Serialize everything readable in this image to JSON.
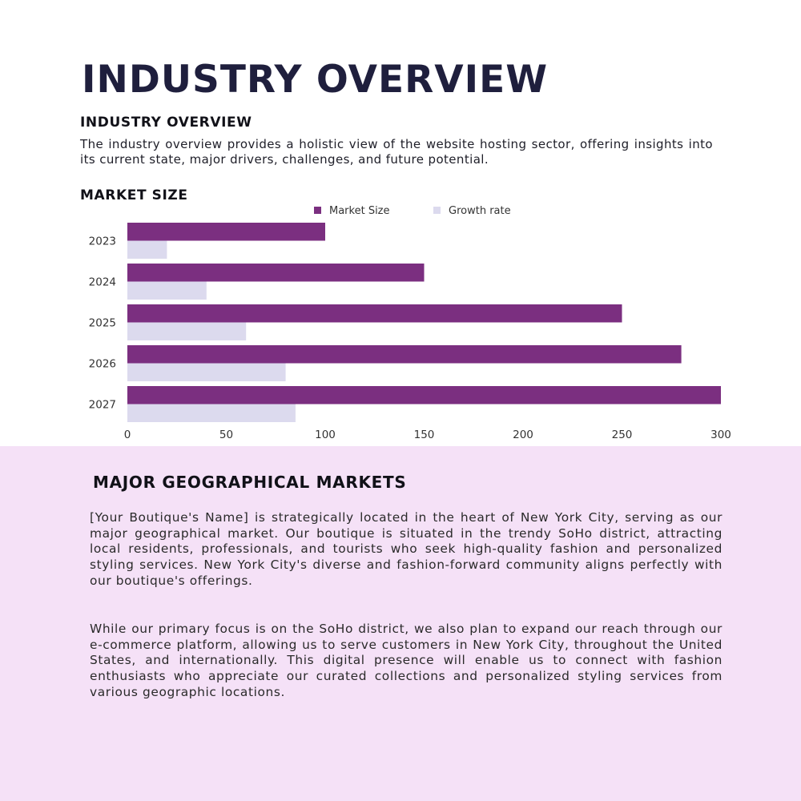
{
  "page": {
    "title": "INDUSTRY OVERVIEW"
  },
  "overview": {
    "heading": "INDUSTRY OVERVIEW",
    "text": "The industry overview provides a holistic view of the website hosting sector, offering insights into its current state, major drivers, challenges, and future potential."
  },
  "market_size": {
    "heading": "MARKET SIZE"
  },
  "chart_data": {
    "type": "bar",
    "orientation": "horizontal",
    "categories": [
      "2023",
      "2024",
      "2025",
      "2026",
      "2027"
    ],
    "series": [
      {
        "name": "Market Size",
        "values": [
          100,
          150,
          250,
          280,
          300
        ],
        "color": "#7b2f80"
      },
      {
        "name": "Growth rate",
        "values": [
          20,
          40,
          60,
          80,
          85
        ],
        "color": "#dcdaee"
      }
    ],
    "xlim": [
      0,
      300
    ],
    "xticks": [
      "0",
      "50",
      "100",
      "150",
      "200",
      "250",
      "300"
    ],
    "legend_position": "top",
    "grid": false
  },
  "geo": {
    "heading": "MAJOR GEOGRAPHICAL MARKETS",
    "paragraph1": "[Your Boutique's Name] is strategically located in the heart of New York City, serving as our major geographical market. Our boutique is situated in the trendy SoHo district, attracting local residents, professionals, and tourists who seek high-quality fashion and personalized styling services. New York City's diverse and fashion-forward community aligns perfectly with our boutique's offerings.",
    "paragraph2": "While our primary focus is on the SoHo district, we also plan to expand our reach through our e-commerce platform, allowing us to serve customers in New York City, throughout the United States, and internationally. This digital presence will enable us to connect with fashion enthusiasts who appreciate our curated collections and personalized styling services from various geographic locations."
  },
  "colors": {
    "title": "#1f1f3d",
    "market_size_bar": "#7b2f80",
    "growth_rate_bar": "#dcdaee",
    "geo_background": "#f5e1f7"
  }
}
